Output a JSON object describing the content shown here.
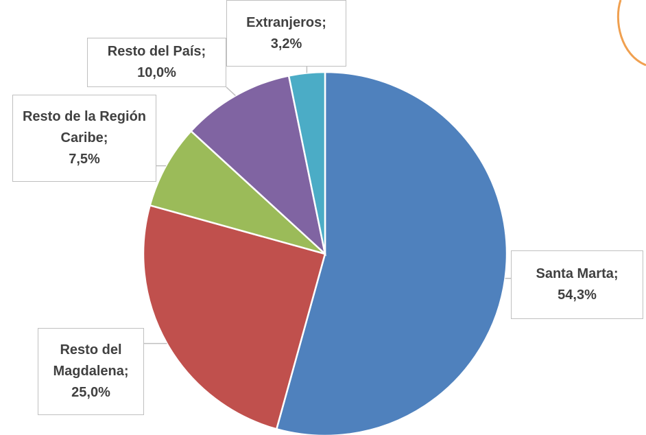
{
  "chart_data": {
    "type": "pie",
    "categories": [
      "Santa Marta;",
      "Resto del Magdalena;",
      "Resto de la Región Caribe;",
      "Resto del País;",
      "Extranjeros;"
    ],
    "values": [
      54.3,
      25.0,
      7.5,
      10.0,
      3.2
    ],
    "value_labels": [
      "54,3%",
      "25,0%",
      "7,5%",
      "10,0%",
      "3,2%"
    ],
    "colors": [
      "#4f81bd",
      "#c0504d",
      "#9bbb59",
      "#8064a2",
      "#4bacc6"
    ]
  }
}
